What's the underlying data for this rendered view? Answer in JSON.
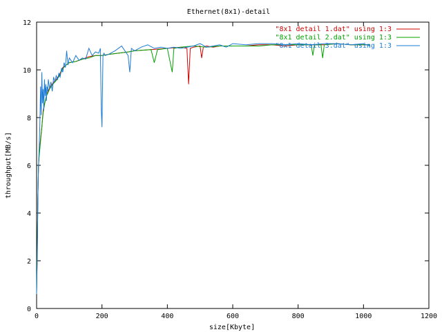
{
  "chart_data": {
    "type": "line",
    "title": "Ethernet(8x1)-detail",
    "xlabel": "size[Kbyte]",
    "ylabel": "throughput[MB/s]",
    "xlim": [
      0,
      1200
    ],
    "ylim": [
      0,
      12
    ],
    "xticks": [
      0,
      200,
      400,
      600,
      800,
      1000,
      1200
    ],
    "yticks": [
      0,
      2,
      4,
      6,
      8,
      10,
      12
    ],
    "xtick_labels": [
      "0",
      "200",
      "400",
      "600",
      "800",
      "1000",
      "1200"
    ],
    "ytick_labels": [
      "0",
      "2",
      "4",
      "6",
      "8",
      "10",
      "12"
    ],
    "grid": false,
    "legend_position": "top-right",
    "series": [
      {
        "name": "\"8x1 detail 1.dat\" using 1:3",
        "color": "#cc0000",
        "x": [
          0,
          2,
          4,
          6,
          8,
          12,
          16,
          20,
          25,
          30,
          35,
          40,
          50,
          60,
          70,
          80,
          90,
          100,
          120,
          140,
          160,
          180,
          200,
          220,
          250,
          280,
          300,
          350,
          400,
          440,
          460,
          465,
          470,
          480,
          500,
          505,
          510,
          520,
          540,
          560,
          580,
          600,
          640,
          680,
          720,
          760,
          800,
          840,
          880,
          920,
          960,
          1000,
          1020
        ],
        "y": [
          0.7,
          2.2,
          4.7,
          6.0,
          6.5,
          7.1,
          7.6,
          8.3,
          8.6,
          8.9,
          9.1,
          9.25,
          9.45,
          9.6,
          9.8,
          10.1,
          10.2,
          10.3,
          10.35,
          10.45,
          10.55,
          10.6,
          10.6,
          10.65,
          10.7,
          10.75,
          10.8,
          10.85,
          10.9,
          10.95,
          10.9,
          9.4,
          10.9,
          10.95,
          11.0,
          10.5,
          10.95,
          11.0,
          10.95,
          11.0,
          11.0,
          11.0,
          11.0,
          11.05,
          11.05,
          11.0,
          11.05,
          11.05,
          11.05,
          11.1,
          11.05,
          11.05,
          11.05
        ]
      },
      {
        "name": "\"8x1 detail 2.dat\" using 1:3",
        "color": "#00a000",
        "x": [
          0,
          2,
          4,
          6,
          8,
          12,
          16,
          20,
          25,
          30,
          35,
          40,
          50,
          60,
          70,
          80,
          90,
          100,
          120,
          140,
          160,
          180,
          200,
          220,
          250,
          280,
          300,
          350,
          360,
          370,
          400,
          415,
          420,
          440,
          480,
          520,
          560,
          600,
          640,
          680,
          720,
          760,
          800,
          840,
          845,
          850,
          870,
          875,
          880,
          920,
          960,
          1000,
          1020
        ],
        "y": [
          0.7,
          2.5,
          4.7,
          6.0,
          6.4,
          7.0,
          7.6,
          8.2,
          8.6,
          8.9,
          9.05,
          9.2,
          9.4,
          9.55,
          9.75,
          10.05,
          10.2,
          10.3,
          10.35,
          10.45,
          10.5,
          10.6,
          10.6,
          10.65,
          10.7,
          10.75,
          10.8,
          10.85,
          10.3,
          10.85,
          10.9,
          9.9,
          10.9,
          10.95,
          11.0,
          10.95,
          11.0,
          11.0,
          11.0,
          11.0,
          11.05,
          11.05,
          11.05,
          11.05,
          10.6,
          11.05,
          11.05,
          10.5,
          11.05,
          11.1,
          11.05,
          11.05,
          11.05
        ]
      },
      {
        "name": "\"8x1 detail 3.dat\" using 1:3",
        "color": "#1a7ad4",
        "x": [
          0,
          2,
          4,
          6,
          8,
          10,
          12,
          14,
          16,
          18,
          20,
          22,
          24,
          26,
          28,
          30,
          32,
          34,
          36,
          40,
          44,
          48,
          52,
          56,
          60,
          64,
          68,
          72,
          76,
          80,
          84,
          88,
          92,
          96,
          100,
          110,
          120,
          130,
          140,
          150,
          160,
          170,
          180,
          190,
          195,
          198,
          200,
          203,
          206,
          210,
          220,
          240,
          260,
          280,
          285,
          290,
          300,
          320,
          340,
          360,
          380,
          400,
          420,
          440,
          460,
          480,
          500,
          520,
          540,
          560,
          580,
          600,
          640,
          680,
          720,
          760,
          800,
          840,
          880,
          920,
          960,
          1000,
          1020
        ],
        "y": [
          0.6,
          2.0,
          4.8,
          6.0,
          6.8,
          7.7,
          9.3,
          8.1,
          9.9,
          8.6,
          9.2,
          8.3,
          9.6,
          8.9,
          9.4,
          8.7,
          9.3,
          9.1,
          9.6,
          9.2,
          9.5,
          9.1,
          9.7,
          9.5,
          9.75,
          9.6,
          9.85,
          9.7,
          10.05,
          9.9,
          10.3,
          10.1,
          10.8,
          10.2,
          10.5,
          10.3,
          10.6,
          10.4,
          10.5,
          10.45,
          10.9,
          10.6,
          10.75,
          10.7,
          10.9,
          8.3,
          7.6,
          10.6,
          10.7,
          10.6,
          10.65,
          10.8,
          11.0,
          10.6,
          9.9,
          10.9,
          10.8,
          10.95,
          11.05,
          10.9,
          10.95,
          10.9,
          10.95,
          10.9,
          10.95,
          11.0,
          11.1,
          10.95,
          11.0,
          11.05,
          10.95,
          11.1,
          11.05,
          11.1,
          11.1,
          11.05,
          11.1,
          11.05,
          11.1,
          11.1,
          11.05,
          11.1,
          11.0
        ]
      }
    ]
  }
}
